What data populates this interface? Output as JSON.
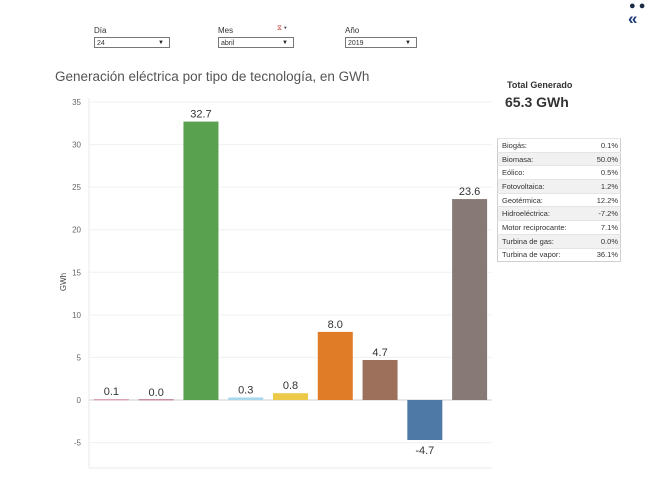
{
  "filters": {
    "day": {
      "label": "Día",
      "value": "24"
    },
    "month": {
      "label": "Mes",
      "value": "abril"
    },
    "year": {
      "label": "Año",
      "value": "2019"
    }
  },
  "chart_title": "Generación eléctrica por tipo de tecnología, en GWh",
  "summary": {
    "total_title": "Total Generado",
    "total_value": "65.3 GWh",
    "rows": [
      {
        "name": "Biogás:",
        "pct": "0.1%"
      },
      {
        "name": "Biomasa:",
        "pct": "50.0%"
      },
      {
        "name": "Eólico:",
        "pct": "0.5%"
      },
      {
        "name": "Fotovoltaica:",
        "pct": "1.2%"
      },
      {
        "name": "Geotérmica:",
        "pct": "12.2%"
      },
      {
        "name": "Hidroeléctrica:",
        "pct": "-7.2%"
      },
      {
        "name": "Motor reciprocante:",
        "pct": "7.1%"
      },
      {
        "name": "Turbina de gas:",
        "pct": "0.0%"
      },
      {
        "name": "Turbina de vapor:",
        "pct": "36.1%"
      }
    ]
  },
  "chart_data": {
    "type": "bar",
    "title": "Generación eléctrica por tipo de tecnología, en GWh",
    "ylabel": "GWh",
    "xlabel": "",
    "ylim": [
      -8,
      35
    ],
    "yticks": [
      -5,
      0,
      5,
      10,
      15,
      20,
      25,
      30,
      35
    ],
    "values": [
      0.1,
      0.0,
      32.7,
      0.3,
      0.8,
      8.0,
      4.7,
      -4.7,
      23.6
    ],
    "value_labels": [
      "0.1",
      "0.0",
      "32.7",
      "0.3",
      "0.8",
      "8.0",
      "4.7",
      "-4.7",
      "23.6"
    ],
    "colors": [
      "#d9a5b3",
      "#c98ea7",
      "#59a14f",
      "#a8d8ee",
      "#edc948",
      "#e07b28",
      "#9c705a",
      "#4e79a7",
      "#867976"
    ],
    "grid": true,
    "legend": "none"
  },
  "icons": {
    "top": "info-icon",
    "collapse": "double-chevron-left-icon"
  }
}
